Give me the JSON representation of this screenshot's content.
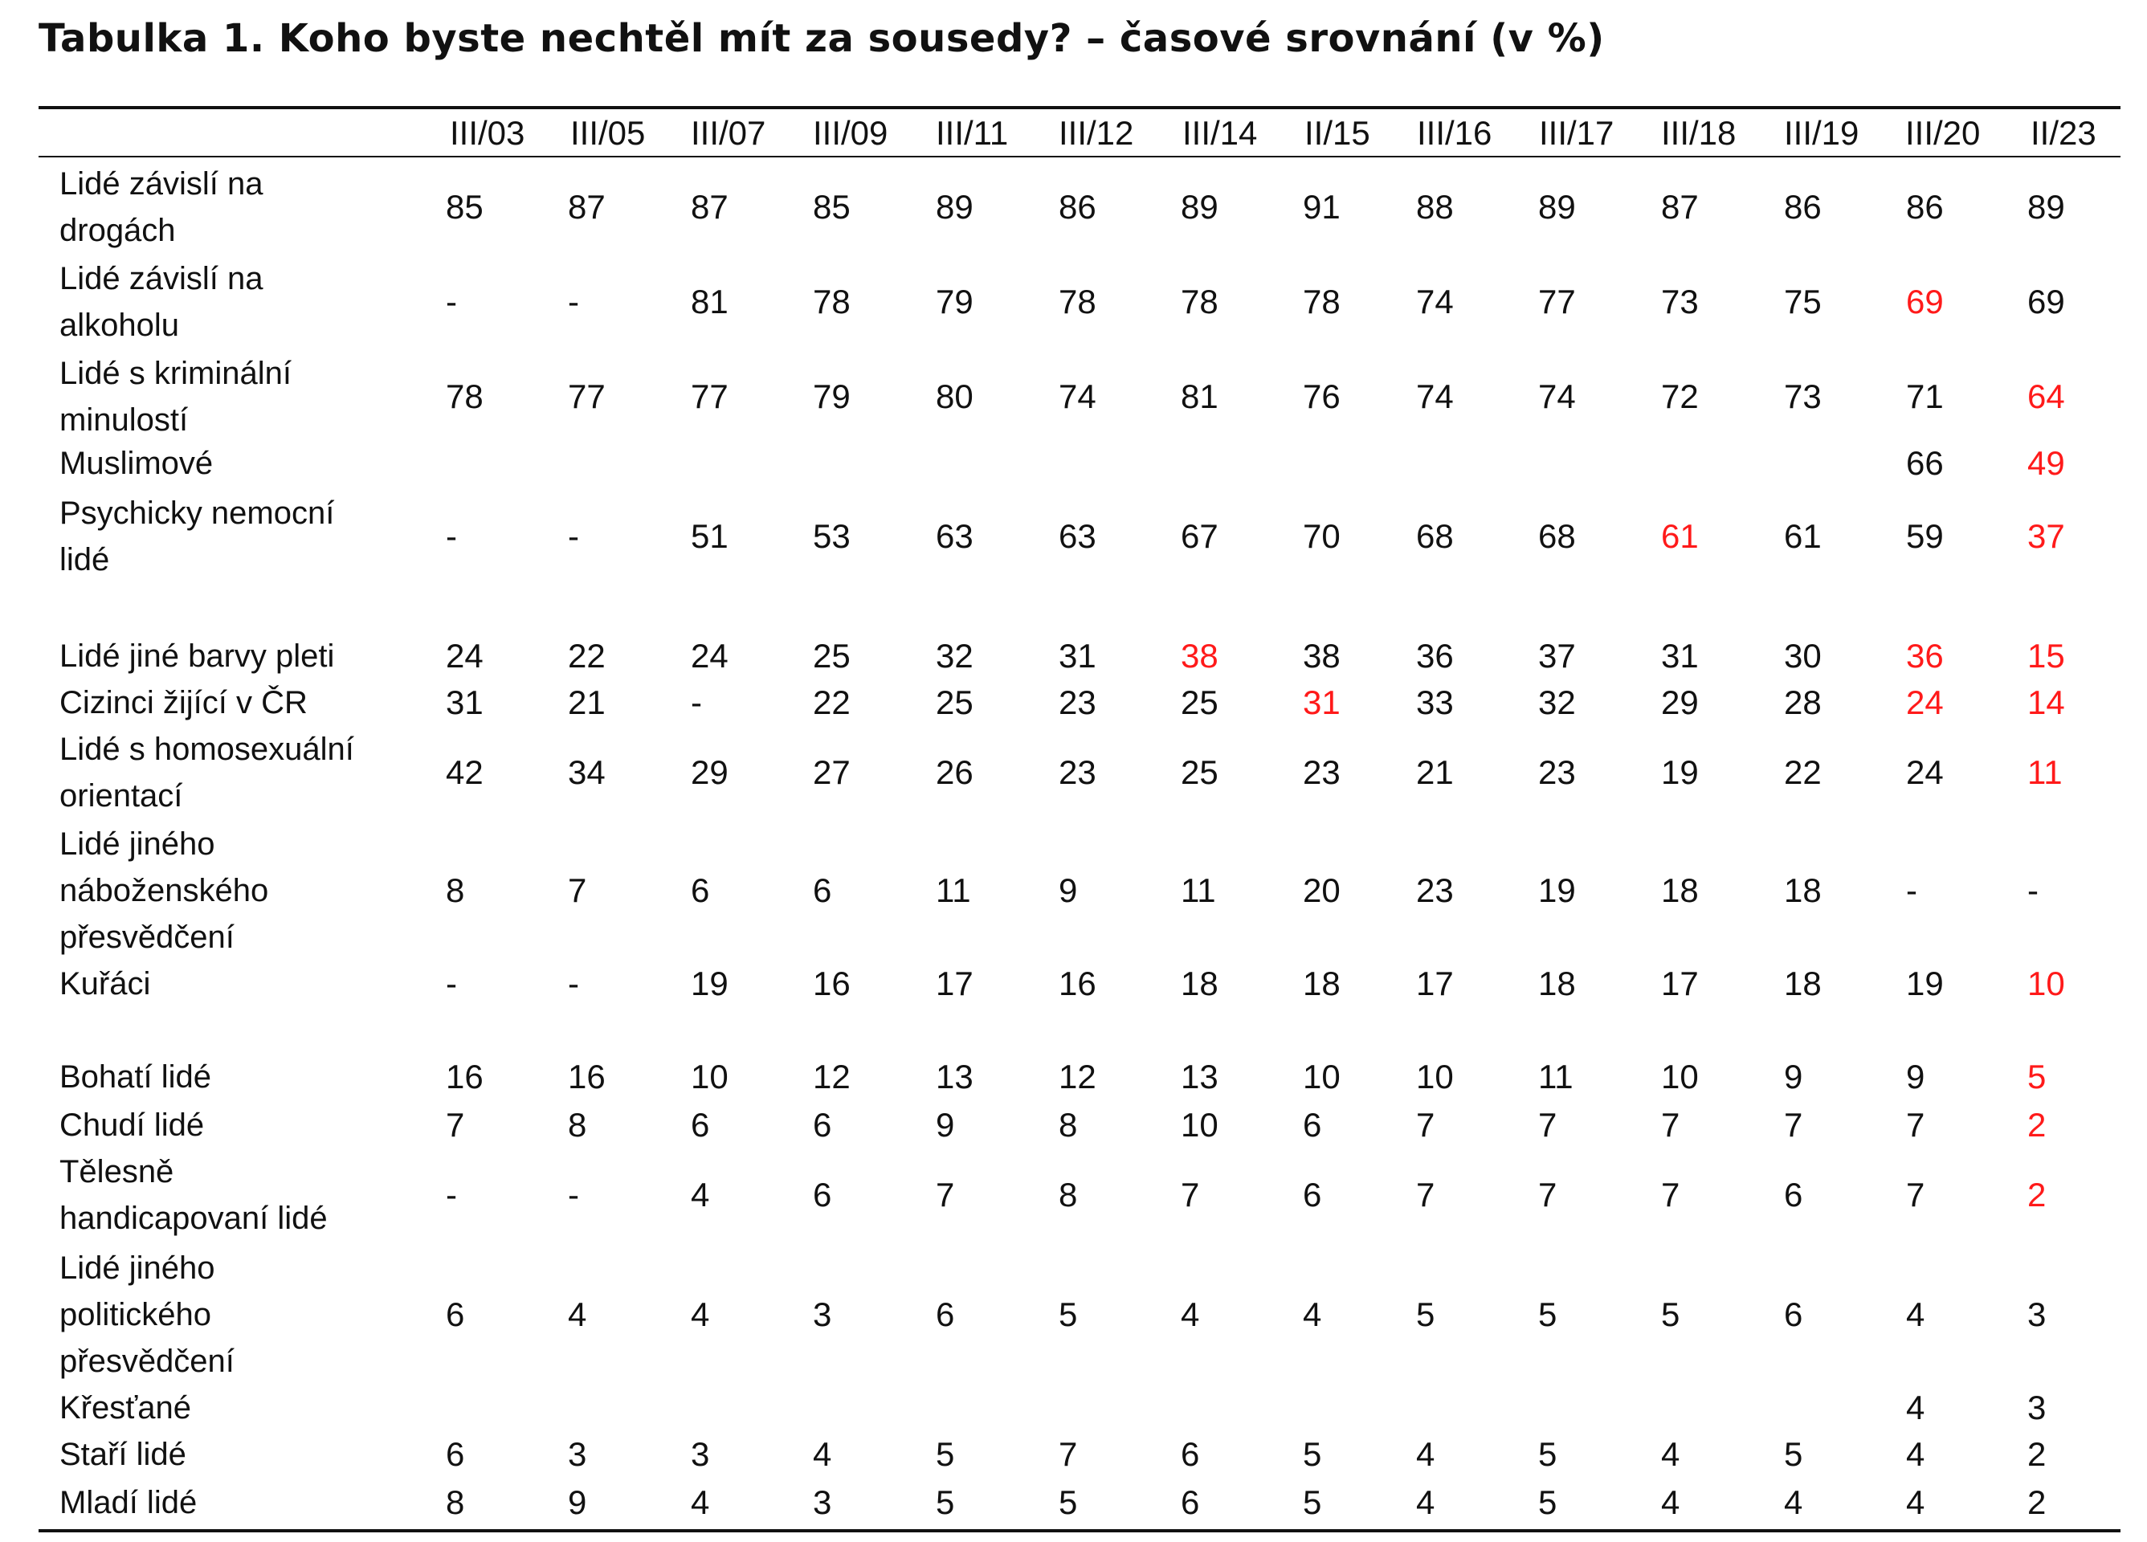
{
  "title": "Tabulka 1. Koho byste nechtěl mít za sousedy? – časové srovnání (v %)",
  "columns": [
    "III/03",
    "III/05",
    "III/07",
    "III/09",
    "III/11",
    "III/12",
    "III/14",
    "II/15",
    "III/16",
    "III/17",
    "III/18",
    "III/19",
    "III/20",
    "II/23"
  ],
  "highlight_color": "#ff1a1a",
  "rows": [
    {
      "label": [
        "Lidé závislí na",
        "drogách"
      ],
      "values": [
        "85",
        "87",
        "87",
        "85",
        "89",
        "86",
        "89",
        "91",
        "88",
        "89",
        "87",
        "86",
        "86",
        "89"
      ],
      "highlight": []
    },
    {
      "label": [
        "Lidé závislí na",
        "alkoholu"
      ],
      "values": [
        "-",
        "-",
        "81",
        "78",
        "79",
        "78",
        "78",
        "78",
        "74",
        "77",
        "73",
        "75",
        "69",
        "69"
      ],
      "highlight": [
        12
      ]
    },
    {
      "label": [
        "Lidé s kriminální",
        "minulostí"
      ],
      "values": [
        "78",
        "77",
        "77",
        "79",
        "80",
        "74",
        "81",
        "76",
        "74",
        "74",
        "72",
        "73",
        "71",
        "64"
      ],
      "highlight": [
        13
      ]
    },
    {
      "label": [
        "Muslimové"
      ],
      "values": [
        "",
        "",
        "",
        "",
        "",
        "",
        "",
        "",
        "",
        "",
        "",
        "",
        "66",
        "49"
      ],
      "highlight": [
        13
      ]
    },
    {
      "label": [
        "Psychicky nemocní",
        "lidé"
      ],
      "values": [
        "-",
        "-",
        "51",
        "53",
        "63",
        "63",
        "67",
        "70",
        "68",
        "68",
        "61",
        "61",
        "59",
        "37"
      ],
      "highlight": [
        10,
        13
      ]
    },
    {
      "label": [
        "Lidé jiné barvy pleti"
      ],
      "values": [
        "24",
        "22",
        "24",
        "25",
        "32",
        "31",
        "38",
        "38",
        "36",
        "37",
        "31",
        "30",
        "36",
        "15"
      ],
      "highlight": [
        6,
        12,
        13
      ]
    },
    {
      "label": [
        "Cizinci žijící v ČR"
      ],
      "values": [
        "31",
        "21",
        "-",
        "22",
        "25",
        "23",
        "25",
        "31",
        "33",
        "32",
        "29",
        "28",
        "24",
        "14"
      ],
      "highlight": [
        7,
        12,
        13
      ]
    },
    {
      "label": [
        "Lidé s homosexuální",
        "orientací"
      ],
      "values": [
        "42",
        "34",
        "29",
        "27",
        "26",
        "23",
        "25",
        "23",
        "21",
        "23",
        "19",
        "22",
        "24",
        "11"
      ],
      "highlight": [
        13
      ]
    },
    {
      "label": [
        "Lidé jiného",
        "náboženského",
        "přesvědčení"
      ],
      "values": [
        "8",
        "7",
        "6",
        "6",
        "11",
        "9",
        "11",
        "20",
        "23",
        "19",
        "18",
        "18",
        "-",
        "-"
      ],
      "highlight": []
    },
    {
      "label": [
        "Kuřáci"
      ],
      "values": [
        "-",
        "-",
        "19",
        "16",
        "17",
        "16",
        "18",
        "18",
        "17",
        "18",
        "17",
        "18",
        "19",
        "10"
      ],
      "highlight": [
        13
      ]
    },
    {
      "label": [
        "Bohatí lidé"
      ],
      "values": [
        "16",
        "16",
        "10",
        "12",
        "13",
        "12",
        "13",
        "10",
        "10",
        "11",
        "10",
        "9",
        "9",
        "5"
      ],
      "highlight": [
        13
      ]
    },
    {
      "label": [
        "Chudí lidé"
      ],
      "values": [
        "7",
        "8",
        "6",
        "6",
        "9",
        "8",
        "10",
        "6",
        "7",
        "7",
        "7",
        "7",
        "7",
        "2"
      ],
      "highlight": [
        13
      ]
    },
    {
      "label": [
        "Tělesně",
        "handicapovaní lidé"
      ],
      "values": [
        "-",
        "-",
        "4",
        "6",
        "7",
        "8",
        "7",
        "6",
        "7",
        "7",
        "7",
        "6",
        "7",
        "2"
      ],
      "highlight": [
        13
      ]
    },
    {
      "label": [
        "Lidé jiného",
        "politického",
        "přesvědčení"
      ],
      "values": [
        "6",
        "4",
        "4",
        "3",
        "6",
        "5",
        "4",
        "4",
        "5",
        "5",
        "5",
        "6",
        "4",
        "3"
      ],
      "highlight": []
    },
    {
      "label": [
        "Křesťané"
      ],
      "values": [
        "",
        "",
        "",
        "",
        "",
        "",
        "",
        "",
        "",
        "",
        "",
        "",
        "4",
        "3"
      ],
      "highlight": []
    },
    {
      "label": [
        "Staří lidé"
      ],
      "values": [
        "6",
        "3",
        "3",
        "4",
        "5",
        "7",
        "6",
        "5",
        "4",
        "5",
        "4",
        "5",
        "4",
        "2"
      ],
      "highlight": []
    },
    {
      "label": [
        "Mladí lidé"
      ],
      "values": [
        "8",
        "9",
        "4",
        "3",
        "5",
        "5",
        "6",
        "5",
        "4",
        "5",
        "4",
        "4",
        "4",
        "2"
      ],
      "highlight": []
    }
  ]
}
